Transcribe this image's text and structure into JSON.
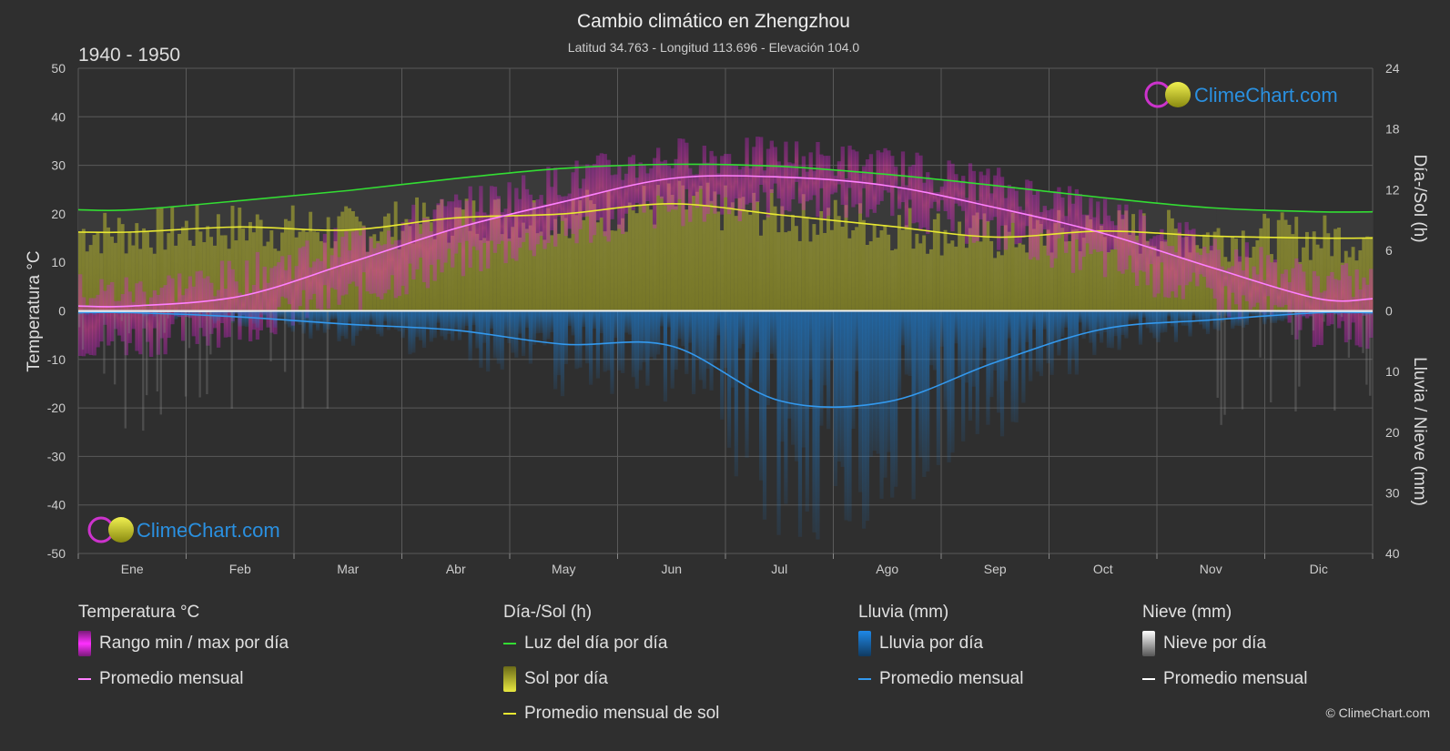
{
  "header": {
    "title": "Cambio climático en Zhengzhou",
    "subtitle": "Latitud 34.763 - Longitud 113.696 - Elevación 104.0",
    "period": "1940 - 1950"
  },
  "brand": {
    "name": "ClimeChart.com",
    "copyright": "© ClimeChart.com"
  },
  "colors": {
    "background": "#2f2f2f",
    "grid": "#5a5a5a",
    "temp_range": "#d020d0",
    "temp_avg": "#ff80ff",
    "daylight": "#33dd33",
    "sunshine": "#c8c832",
    "sun_avg": "#e8e832",
    "rain": "#1e78c8",
    "rain_avg": "#3399ee",
    "snow": "#aaaaaa",
    "snow_avg": "#ffffff",
    "brand_blue": "#2a90e0"
  },
  "chart_data": {
    "type": "line",
    "months": [
      "Ene",
      "Feb",
      "Mar",
      "Abr",
      "May",
      "Jun",
      "Jul",
      "Ago",
      "Sep",
      "Oct",
      "Nov",
      "Dic"
    ],
    "axes": {
      "left": {
        "label": "Temperatura °C",
        "ticks": [
          50,
          40,
          30,
          20,
          10,
          0,
          -10,
          -20,
          -30,
          -40,
          -50
        ],
        "range": [
          -50,
          50
        ]
      },
      "right_top": {
        "label": "Día-/Sol (h)",
        "ticks": [
          24,
          18,
          12,
          6,
          0
        ],
        "range": [
          0,
          24
        ]
      },
      "right_bottom": {
        "label": "Lluvia / Nieve (mm)",
        "ticks": [
          0,
          10,
          20,
          30,
          40
        ],
        "range": [
          0,
          40
        ]
      }
    },
    "series": [
      {
        "name": "Luz del día por día",
        "unit": "h",
        "values": [
          10.0,
          10.9,
          11.9,
          13.1,
          14.1,
          14.5,
          14.3,
          13.5,
          12.4,
          11.2,
          10.2,
          9.8
        ]
      },
      {
        "name": "Promedio mensual de sol",
        "unit": "h",
        "values": [
          7.8,
          8.3,
          8.0,
          9.2,
          9.6,
          10.6,
          9.5,
          8.4,
          7.3,
          7.9,
          7.4,
          7.2
        ]
      },
      {
        "name": "Promedio mensual",
        "group": "Temperatura °C",
        "unit": "°C",
        "values": [
          1.0,
          3.0,
          9.8,
          17.0,
          22.5,
          27.3,
          27.6,
          25.8,
          21.3,
          16.0,
          9.0,
          2.5
        ]
      },
      {
        "name": "Promedio mensual",
        "group": "Lluvia (mm)",
        "unit": "mm",
        "values": [
          0.3,
          1.0,
          2.2,
          3.2,
          5.5,
          5.8,
          14.8,
          15.0,
          8.5,
          3.0,
          1.5,
          0.3
        ]
      },
      {
        "name": "Promedio mensual",
        "group": "Nieve (mm)",
        "unit": "mm",
        "values": [
          0.1,
          0.1,
          0.0,
          0.0,
          0.0,
          0.0,
          0.0,
          0.0,
          0.0,
          0.0,
          0.0,
          0.1
        ]
      }
    ],
    "temp_range_daily": {
      "name": "Rango min / max por día",
      "max": [
        4,
        7,
        14,
        21,
        27,
        32,
        32,
        30,
        26,
        21,
        13,
        6
      ],
      "min": [
        -6,
        -3,
        3,
        10,
        16,
        21,
        23,
        22,
        16,
        10,
        3,
        -4
      ]
    }
  },
  "legend": {
    "groups": [
      {
        "title": "Temperatura °C",
        "items": [
          {
            "label": "Rango min / max por día",
            "kind": "box",
            "color": "#d020d0"
          },
          {
            "label": "Promedio mensual",
            "kind": "line",
            "color": "#ff80ff"
          }
        ]
      },
      {
        "title": "Día-/Sol (h)",
        "items": [
          {
            "label": "Luz del día por día",
            "kind": "line",
            "color": "#33dd33"
          },
          {
            "label": "Sol por día",
            "kind": "box",
            "color": "#c8c832"
          },
          {
            "label": "Promedio mensual de sol",
            "kind": "line",
            "color": "#e8e832"
          }
        ]
      },
      {
        "title": "Lluvia (mm)",
        "items": [
          {
            "label": "Lluvia por día",
            "kind": "box",
            "color": "#1e78c8"
          },
          {
            "label": "Promedio mensual",
            "kind": "line",
            "color": "#3399ee"
          }
        ]
      },
      {
        "title": "Nieve (mm)",
        "items": [
          {
            "label": "Nieve por día",
            "kind": "box",
            "color": "#cccccc"
          },
          {
            "label": "Promedio mensual",
            "kind": "line",
            "color": "#ffffff"
          }
        ]
      }
    ]
  }
}
